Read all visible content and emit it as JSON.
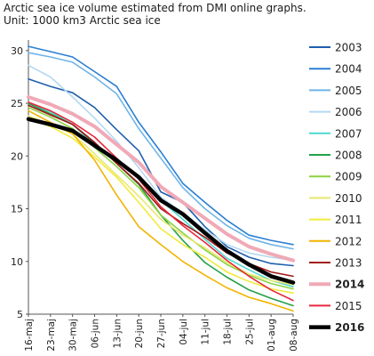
{
  "chart_data": {
    "type": "line",
    "title_lines": [
      "Arctic sea ice volume estimated from DMI online graphs.",
      "Unit: 1000 km3 Arctic sea ice"
    ],
    "xlabel": "",
    "ylabel": "",
    "x_tick_labels": [
      "16-maj",
      "23-maj",
      "30-maj",
      "06-jun",
      "13-jun",
      "20-jun",
      "27-jun",
      "04-jul",
      "11-jul",
      "18-jul",
      "25-jul",
      "01-aug",
      "08-aug"
    ],
    "x_range_days": [
      0,
      84
    ],
    "ylim": [
      5,
      31
    ],
    "y_ticks": [
      5,
      10,
      15,
      20,
      25,
      30
    ],
    "grid": false,
    "legend_position": "right",
    "series": [
      {
        "name": "2003",
        "color": "#1f5fae",
        "bold": false,
        "values": [
          [
            0,
            27.3
          ],
          [
            7,
            26.6
          ],
          [
            14,
            26.0
          ],
          [
            21,
            24.6
          ],
          [
            28,
            22.5
          ],
          [
            35,
            20.5
          ],
          [
            42,
            16.6
          ],
          [
            49,
            15.6
          ],
          [
            56,
            13.3
          ],
          [
            63,
            11.4
          ],
          [
            70,
            10.4
          ],
          [
            77,
            9.8
          ],
          [
            84,
            9.6
          ]
        ]
      },
      {
        "name": "2004",
        "color": "#2a7fd4",
        "bold": false,
        "values": [
          [
            0,
            30.4
          ],
          [
            7,
            29.9
          ],
          [
            14,
            29.4
          ],
          [
            21,
            28.0
          ],
          [
            28,
            26.6
          ],
          [
            35,
            23.2
          ],
          [
            42,
            20.4
          ],
          [
            49,
            17.4
          ],
          [
            56,
            15.6
          ],
          [
            63,
            13.9
          ],
          [
            70,
            12.5
          ],
          [
            77,
            12.0
          ],
          [
            84,
            11.6
          ]
        ]
      },
      {
        "name": "2005",
        "color": "#6fb4e8",
        "bold": false,
        "values": [
          [
            0,
            29.8
          ],
          [
            7,
            29.4
          ],
          [
            14,
            28.9
          ],
          [
            21,
            27.5
          ],
          [
            28,
            25.9
          ],
          [
            35,
            22.6
          ],
          [
            42,
            19.8
          ],
          [
            49,
            17.0
          ],
          [
            56,
            15.0
          ],
          [
            63,
            13.4
          ],
          [
            70,
            12.2
          ],
          [
            77,
            11.6
          ],
          [
            84,
            11.2
          ]
        ]
      },
      {
        "name": "2006",
        "color": "#b3d9f2",
        "bold": false,
        "values": [
          [
            0,
            28.6
          ],
          [
            7,
            27.5
          ],
          [
            14,
            25.6
          ],
          [
            21,
            23.6
          ],
          [
            28,
            21.4
          ],
          [
            35,
            18.9
          ],
          [
            42,
            16.1
          ],
          [
            49,
            14.6
          ],
          [
            56,
            13.0
          ],
          [
            63,
            11.6
          ],
          [
            70,
            10.8
          ],
          [
            77,
            10.4
          ],
          [
            84,
            10.1
          ]
        ]
      },
      {
        "name": "2007",
        "color": "#4dd9d1",
        "bold": false,
        "values": [
          [
            0,
            25.0
          ],
          [
            7,
            24.2
          ],
          [
            14,
            23.0
          ],
          [
            21,
            21.1
          ],
          [
            28,
            19.6
          ],
          [
            35,
            18.0
          ],
          [
            42,
            15.8
          ],
          [
            49,
            14.0
          ],
          [
            56,
            12.1
          ],
          [
            63,
            10.3
          ],
          [
            70,
            9.2
          ],
          [
            77,
            8.2
          ],
          [
            84,
            7.6
          ]
        ]
      },
      {
        "name": "2008",
        "color": "#23a04a",
        "bold": false,
        "values": [
          [
            0,
            25.0
          ],
          [
            7,
            24.0
          ],
          [
            14,
            23.0
          ],
          [
            21,
            21.2
          ],
          [
            28,
            19.3
          ],
          [
            35,
            17.3
          ],
          [
            42,
            14.4
          ],
          [
            49,
            12.0
          ],
          [
            56,
            9.9
          ],
          [
            63,
            8.5
          ],
          [
            70,
            7.3
          ],
          [
            77,
            6.5
          ],
          [
            84,
            5.8
          ]
        ]
      },
      {
        "name": "2009",
        "color": "#8cd13f",
        "bold": false,
        "values": [
          [
            0,
            24.6
          ],
          [
            7,
            23.7
          ],
          [
            14,
            22.6
          ],
          [
            21,
            20.8
          ],
          [
            28,
            19.0
          ],
          [
            35,
            17.0
          ],
          [
            42,
            14.4
          ],
          [
            49,
            12.7
          ],
          [
            56,
            11.1
          ],
          [
            63,
            9.7
          ],
          [
            70,
            8.7
          ],
          [
            77,
            7.9
          ],
          [
            84,
            7.4
          ]
        ]
      },
      {
        "name": "2010",
        "color": "#e8e870",
        "bold": false,
        "values": [
          [
            0,
            23.8
          ],
          [
            7,
            23.0
          ],
          [
            14,
            22.1
          ],
          [
            21,
            20.2
          ],
          [
            28,
            18.2
          ],
          [
            35,
            16.2
          ],
          [
            42,
            14.0
          ],
          [
            49,
            12.5
          ],
          [
            56,
            11.3
          ],
          [
            63,
            9.9
          ],
          [
            70,
            8.8
          ],
          [
            77,
            8.2
          ],
          [
            84,
            7.8
          ]
        ]
      },
      {
        "name": "2011",
        "color": "#f2ea3c",
        "bold": false,
        "values": [
          [
            0,
            23.6
          ],
          [
            7,
            22.8
          ],
          [
            14,
            21.7
          ],
          [
            21,
            19.9
          ],
          [
            28,
            18.0
          ],
          [
            35,
            15.6
          ],
          [
            42,
            13.1
          ],
          [
            49,
            11.6
          ],
          [
            56,
            10.4
          ],
          [
            63,
            9.0
          ],
          [
            70,
            8.1
          ],
          [
            77,
            7.4
          ],
          [
            84,
            7.0
          ]
        ]
      },
      {
        "name": "2012",
        "color": "#f2b400",
        "bold": false,
        "values": [
          [
            0,
            24.3
          ],
          [
            7,
            23.2
          ],
          [
            14,
            22.1
          ],
          [
            21,
            19.6
          ],
          [
            28,
            16.3
          ],
          [
            35,
            13.3
          ],
          [
            42,
            11.6
          ],
          [
            49,
            10.0
          ],
          [
            56,
            8.7
          ],
          [
            63,
            7.5
          ],
          [
            70,
            6.6
          ],
          [
            77,
            6.0
          ],
          [
            84,
            5.3
          ]
        ]
      },
      {
        "name": "2013",
        "color": "#a01818",
        "bold": false,
        "values": [
          [
            0,
            24.8
          ],
          [
            7,
            23.9
          ],
          [
            14,
            23.0
          ],
          [
            21,
            21.3
          ],
          [
            28,
            19.3
          ],
          [
            35,
            17.4
          ],
          [
            42,
            15.0
          ],
          [
            49,
            13.6
          ],
          [
            56,
            12.3
          ],
          [
            63,
            10.8
          ],
          [
            70,
            9.8
          ],
          [
            77,
            9.0
          ],
          [
            84,
            8.6
          ]
        ]
      },
      {
        "name": "2014",
        "color": "#f0a9b6",
        "bold": true,
        "values": [
          [
            0,
            25.6
          ],
          [
            7,
            24.9
          ],
          [
            14,
            24.0
          ],
          [
            21,
            22.8
          ],
          [
            28,
            21.1
          ],
          [
            35,
            19.4
          ],
          [
            42,
            17.1
          ],
          [
            49,
            15.6
          ],
          [
            56,
            14.1
          ],
          [
            63,
            12.6
          ],
          [
            70,
            11.4
          ],
          [
            77,
            10.7
          ],
          [
            84,
            10.1
          ]
        ]
      },
      {
        "name": "2015",
        "color": "#e8283c",
        "bold": false,
        "values": [
          [
            0,
            25.1
          ],
          [
            7,
            24.3
          ],
          [
            14,
            23.2
          ],
          [
            21,
            21.8
          ],
          [
            28,
            19.8
          ],
          [
            35,
            17.8
          ],
          [
            42,
            15.2
          ],
          [
            49,
            13.4
          ],
          [
            56,
            11.8
          ],
          [
            63,
            10.1
          ],
          [
            70,
            8.6
          ],
          [
            77,
            7.3
          ],
          [
            84,
            6.3
          ]
        ]
      },
      {
        "name": "2016",
        "color": "#000000",
        "bold": true,
        "values": [
          [
            0,
            23.5
          ],
          [
            7,
            23.0
          ],
          [
            14,
            22.4
          ],
          [
            21,
            21.0
          ],
          [
            28,
            19.6
          ],
          [
            35,
            18.0
          ],
          [
            42,
            15.8
          ],
          [
            49,
            14.5
          ],
          [
            56,
            12.7
          ],
          [
            63,
            11.0
          ],
          [
            70,
            9.7
          ],
          [
            77,
            8.6
          ],
          [
            84,
            8.0
          ]
        ]
      }
    ]
  }
}
